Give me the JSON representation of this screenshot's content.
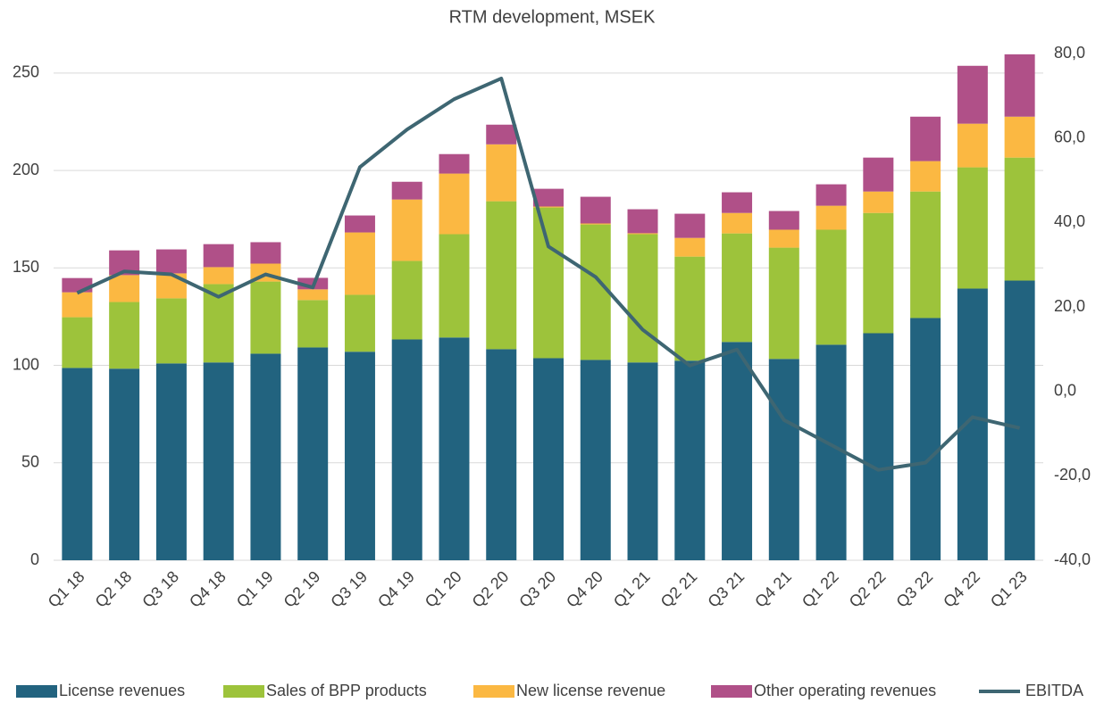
{
  "chart_data": {
    "type": "bar",
    "stacked": true,
    "title": "RTM development, MSEK",
    "categories": [
      "Q1 18",
      "Q2 18",
      "Q3 18",
      "Q4 18",
      "Q1 19",
      "Q2 19",
      "Q3 19",
      "Q4 19",
      "Q1 20",
      "Q2 20",
      "Q3 20",
      "Q4 20",
      "Q1 21",
      "Q2 21",
      "Q3 21",
      "Q4 21",
      "Q1 22",
      "Q2 22",
      "Q3 22",
      "Q4 22",
      "Q1 23"
    ],
    "series": [
      {
        "name": "License revenues",
        "color": "#22637f",
        "values": [
          98.7,
          98.3,
          101,
          101.5,
          106,
          109.2,
          107,
          113.3,
          114.3,
          108.3,
          103.7,
          102.8,
          101.5,
          102.4,
          112,
          103.3,
          110.6,
          116.5,
          124.3,
          139.4,
          143.5
        ]
      },
      {
        "name": "Sales of BPP products",
        "color": "#9dc33b",
        "values": [
          26,
          34.2,
          33.4,
          40.2,
          37,
          24.3,
          29.2,
          40.3,
          53,
          75.9,
          77.3,
          69.5,
          65.8,
          53.4,
          55.7,
          57.1,
          59,
          61.7,
          64.9,
          62.2,
          63.1
        ]
      },
      {
        "name": "New license revenue",
        "color": "#fbb842",
        "values": [
          12.8,
          13.8,
          12.8,
          8.7,
          9.2,
          5.5,
          32,
          31.5,
          31.1,
          29.2,
          0.5,
          0.5,
          0.5,
          9.6,
          10.5,
          9.2,
          12.3,
          11,
          15.6,
          22.4,
          21
        ]
      },
      {
        "name": "Other operating revenues",
        "color": "#b05088",
        "values": [
          7.3,
          12.7,
          12.3,
          11.8,
          11,
          5.9,
          8.7,
          9.1,
          10,
          10.1,
          9.1,
          13.7,
          12.3,
          12.4,
          10.6,
          9.6,
          11,
          17.4,
          22.8,
          29.7,
          32
        ]
      },
      {
        "name": "EBITDA",
        "color": "#3e6672",
        "type": "line",
        "axis": "y2",
        "values": [
          23.3,
          28.4,
          27.7,
          22.4,
          27.7,
          24.6,
          53.1,
          62,
          69.2,
          74.1,
          34.3,
          27.1,
          14.6,
          6.1,
          9.9,
          -6.8,
          -12.7,
          -18.6,
          -16.9,
          -6.1,
          -8.7
        ]
      }
    ],
    "ylim": [
      0,
      260
    ],
    "yticks": [
      0,
      50,
      100,
      150,
      200,
      250
    ],
    "y2lim": [
      -40,
      80
    ],
    "y2ticks": [
      {
        "value": -40,
        "label": "-40,0"
      },
      {
        "value": -20,
        "label": "-20,0"
      },
      {
        "value": 0,
        "label": "0,0"
      },
      {
        "value": 20,
        "label": "20,0"
      },
      {
        "value": 40,
        "label": "40,0"
      },
      {
        "value": 60,
        "label": "60,0"
      },
      {
        "value": 80,
        "label": "80,0"
      }
    ],
    "grid": true,
    "legend": "bottom"
  }
}
